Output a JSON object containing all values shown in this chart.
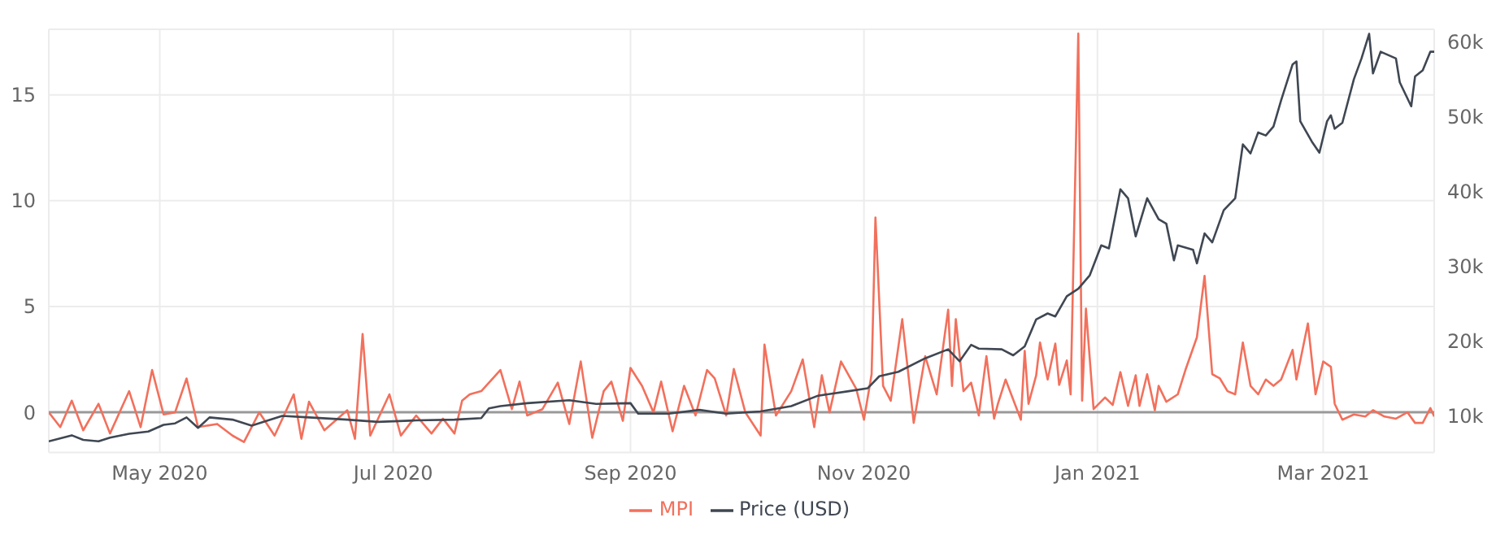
{
  "chart_data": {
    "type": "line",
    "xlim": [
      "2020-04-02",
      "2021-03-30"
    ],
    "xticks": [
      {
        "value": "2020-05-01",
        "label": "May 2020"
      },
      {
        "value": "2020-07-01",
        "label": "Jul 2020"
      },
      {
        "value": "2020-09-01",
        "label": "Sep 2020"
      },
      {
        "value": "2020-11-01",
        "label": "Nov 2020"
      },
      {
        "value": "2021-01-01",
        "label": "Jan 2021"
      },
      {
        "value": "2021-03-01",
        "label": "Mar 2021"
      }
    ],
    "ylim": [
      -1.9,
      18.1
    ],
    "yticks": [
      0,
      5,
      10,
      15
    ],
    "y2lim": [
      5100,
      61700
    ],
    "y2ticks": [
      {
        "value": 10000,
        "label": "10k"
      },
      {
        "value": 20000,
        "label": "20k"
      },
      {
        "value": 30000,
        "label": "30k"
      },
      {
        "value": 40000,
        "label": "40k"
      },
      {
        "value": 50000,
        "label": "50k"
      },
      {
        "value": 60000,
        "label": "60k"
      }
    ],
    "grid": true,
    "legend": "bottom",
    "marker": "none",
    "line_style": "solid",
    "ref_lines": [
      {
        "axis": "y",
        "value": 0,
        "color": "#999999"
      }
    ],
    "series": [
      {
        "name": "MPI",
        "color": "#f2705c",
        "x": [
          "2020-04-02",
          "2020-04-05",
          "2020-04-08",
          "2020-04-11",
          "2020-04-15",
          "2020-04-18",
          "2020-04-23",
          "2020-04-26",
          "2020-04-29",
          "2020-05-02",
          "2020-05-05",
          "2020-05-08",
          "2020-05-11",
          "2020-05-16",
          "2020-05-20",
          "2020-05-23",
          "2020-05-27",
          "2020-05-31",
          "2020-06-05",
          "2020-06-07",
          "2020-06-09",
          "2020-06-13",
          "2020-06-19",
          "2020-06-21",
          "2020-06-23",
          "2020-06-25",
          "2020-06-30",
          "2020-07-03",
          "2020-07-07",
          "2020-07-11",
          "2020-07-14",
          "2020-07-17",
          "2020-07-19",
          "2020-07-21",
          "2020-07-24",
          "2020-07-29",
          "2020-08-01",
          "2020-08-03",
          "2020-08-05",
          "2020-08-09",
          "2020-08-13",
          "2020-08-16",
          "2020-08-19",
          "2020-08-22",
          "2020-08-25",
          "2020-08-27",
          "2020-08-30",
          "2020-09-01",
          "2020-09-04",
          "2020-09-07",
          "2020-09-09",
          "2020-09-12",
          "2020-09-15",
          "2020-09-18",
          "2020-09-21",
          "2020-09-23",
          "2020-09-26",
          "2020-09-28",
          "2020-10-01",
          "2020-10-05",
          "2020-10-06",
          "2020-10-09",
          "2020-10-13",
          "2020-10-16",
          "2020-10-19",
          "2020-10-21",
          "2020-10-23",
          "2020-10-26",
          "2020-10-30",
          "2020-11-01",
          "2020-11-03",
          "2020-11-04",
          "2020-11-06",
          "2020-11-08",
          "2020-11-11",
          "2020-11-14",
          "2020-11-17",
          "2020-11-20",
          "2020-11-23",
          "2020-11-24",
          "2020-11-25",
          "2020-11-27",
          "2020-11-29",
          "2020-12-01",
          "2020-12-03",
          "2020-12-05",
          "2020-12-06",
          "2020-12-08",
          "2020-12-12",
          "2020-12-13",
          "2020-12-14",
          "2020-12-16",
          "2020-12-17",
          "2020-12-19",
          "2020-12-21",
          "2020-12-22",
          "2020-12-24",
          "2020-12-25",
          "2020-12-27",
          "2020-12-28",
          "2020-12-29",
          "2020-12-31",
          "2021-01-03",
          "2021-01-05",
          "2021-01-07",
          "2021-01-09",
          "2021-01-11",
          "2021-01-12",
          "2021-01-14",
          "2021-01-16",
          "2021-01-17",
          "2021-01-19",
          "2021-01-22",
          "2021-01-24",
          "2021-01-27",
          "2021-01-29",
          "2021-01-31",
          "2021-02-02",
          "2021-02-04",
          "2021-02-06",
          "2021-02-08",
          "2021-02-10",
          "2021-02-12",
          "2021-02-14",
          "2021-02-16",
          "2021-02-18",
          "2021-02-21",
          "2021-02-22",
          "2021-02-25",
          "2021-02-27",
          "2021-03-01",
          "2021-03-03",
          "2021-03-04",
          "2021-03-06",
          "2021-03-09",
          "2021-03-12",
          "2021-03-14",
          "2021-03-17",
          "2021-03-20",
          "2021-03-23",
          "2021-03-25",
          "2021-03-27",
          "2021-03-29",
          "2021-03-30"
        ],
        "values": [
          0,
          -0.7,
          0.55,
          -0.85,
          0.4,
          -1.0,
          1.0,
          -0.7,
          2.0,
          -0.1,
          0,
          1.6,
          -0.7,
          -0.55,
          -1.1,
          -1.4,
          0,
          -1.1,
          0.85,
          -1.25,
          0.5,
          -0.85,
          0.1,
          -1.25,
          3.7,
          -1.1,
          0.85,
          -1.1,
          -0.15,
          -1.0,
          -0.3,
          -1.0,
          0.55,
          0.85,
          1.0,
          2.0,
          0.15,
          1.45,
          -0.15,
          0.15,
          1.4,
          -0.55,
          2.4,
          -1.2,
          1.0,
          1.45,
          -0.4,
          2.1,
          1.25,
          0,
          1.45,
          -0.9,
          1.25,
          -0.15,
          2.0,
          1.6,
          -0.15,
          2.05,
          0,
          -1.1,
          3.2,
          -0.15,
          1.0,
          2.5,
          -0.7,
          1.75,
          0,
          2.4,
          1.1,
          -0.35,
          1.8,
          9.2,
          1.25,
          0.55,
          4.4,
          -0.5,
          2.65,
          0.85,
          4.85,
          1.25,
          4.4,
          1.0,
          1.4,
          -0.15,
          2.65,
          -0.3,
          0.4,
          1.55,
          -0.35,
          2.9,
          0.4,
          1.75,
          3.3,
          1.55,
          3.25,
          1.3,
          2.45,
          0.85,
          17.9,
          0.55,
          4.9,
          0.15,
          0.7,
          0.35,
          1.9,
          0.3,
          1.75,
          0.3,
          1.8,
          0.1,
          1.25,
          0.5,
          0.85,
          2.0,
          3.55,
          6.45,
          1.8,
          1.6,
          1.0,
          0.85,
          3.3,
          1.25,
          0.85,
          1.55,
          1.25,
          1.55,
          2.95,
          1.55,
          4.2,
          0.85,
          2.4,
          2.15,
          0.4,
          -0.35,
          -0.1,
          -0.2,
          0.1,
          -0.2,
          -0.3,
          0,
          -0.5,
          -0.5,
          0.2,
          -0.2
        ]
      },
      {
        "name": "Price (USD)",
        "color": "#3f4752",
        "axis": "y2",
        "x": [
          "2020-04-02",
          "2020-04-08",
          "2020-04-11",
          "2020-04-15",
          "2020-04-18",
          "2020-04-23",
          "2020-04-28",
          "2020-05-02",
          "2020-05-05",
          "2020-05-08",
          "2020-05-11",
          "2020-05-14",
          "2020-05-20",
          "2020-05-25",
          "2020-06-02",
          "2020-06-09",
          "2020-06-19",
          "2020-06-27",
          "2020-07-07",
          "2020-07-17",
          "2020-07-24",
          "2020-07-26",
          "2020-07-29",
          "2020-08-05",
          "2020-08-16",
          "2020-08-23",
          "2020-09-01",
          "2020-09-03",
          "2020-09-11",
          "2020-09-19",
          "2020-09-26",
          "2020-10-05",
          "2020-10-13",
          "2020-10-20",
          "2020-10-28",
          "2020-11-02",
          "2020-11-05",
          "2020-11-10",
          "2020-11-17",
          "2020-11-23",
          "2020-11-26",
          "2020-11-29",
          "2020-12-01",
          "2020-12-07",
          "2020-12-10",
          "2020-12-13",
          "2020-12-16",
          "2020-12-19",
          "2020-12-21",
          "2020-12-24",
          "2020-12-27",
          "2020-12-30",
          "2021-01-02",
          "2021-01-04",
          "2021-01-07",
          "2021-01-09",
          "2021-01-11",
          "2021-01-14",
          "2021-01-17",
          "2021-01-19",
          "2021-01-21",
          "2021-01-22",
          "2021-01-26",
          "2021-01-27",
          "2021-01-29",
          "2021-01-31",
          "2021-02-03",
          "2021-02-06",
          "2021-02-08",
          "2021-02-10",
          "2021-02-12",
          "2021-02-14",
          "2021-02-16",
          "2021-02-18",
          "2021-02-21",
          "2021-02-22",
          "2021-02-23",
          "2021-02-26",
          "2021-02-28",
          "2021-03-02",
          "2021-03-03",
          "2021-03-04",
          "2021-03-06",
          "2021-03-09",
          "2021-03-11",
          "2021-03-13",
          "2021-03-14",
          "2021-03-16",
          "2021-03-20",
          "2021-03-21",
          "2021-03-24",
          "2021-03-25",
          "2021-03-27",
          "2021-03-29",
          "2021-03-30"
        ],
        "values": [
          6600,
          7400,
          6800,
          6600,
          7100,
          7600,
          7900,
          8800,
          9000,
          9800,
          8400,
          9800,
          9500,
          8700,
          10000,
          9800,
          9500,
          9200,
          9400,
          9500,
          9700,
          11000,
          11300,
          11700,
          12100,
          11600,
          11700,
          10300,
          10300,
          10800,
          10300,
          10600,
          11300,
          12700,
          13300,
          13700,
          15300,
          15900,
          17700,
          18900,
          17300,
          19500,
          19000,
          18900,
          18100,
          19300,
          22900,
          23700,
          23300,
          26000,
          27000,
          28800,
          32800,
          32400,
          40300,
          39100,
          34000,
          39100,
          36300,
          35700,
          30800,
          32800,
          32200,
          30400,
          34400,
          33200,
          37500,
          39100,
          46300,
          45100,
          47900,
          47500,
          48700,
          52200,
          57000,
          57400,
          49400,
          46700,
          45200,
          49400,
          50200,
          48400,
          49200,
          55000,
          57800,
          61100,
          55800,
          58700,
          57800,
          54600,
          51400,
          55400,
          56200,
          58700,
          58700
        ]
      }
    ]
  }
}
